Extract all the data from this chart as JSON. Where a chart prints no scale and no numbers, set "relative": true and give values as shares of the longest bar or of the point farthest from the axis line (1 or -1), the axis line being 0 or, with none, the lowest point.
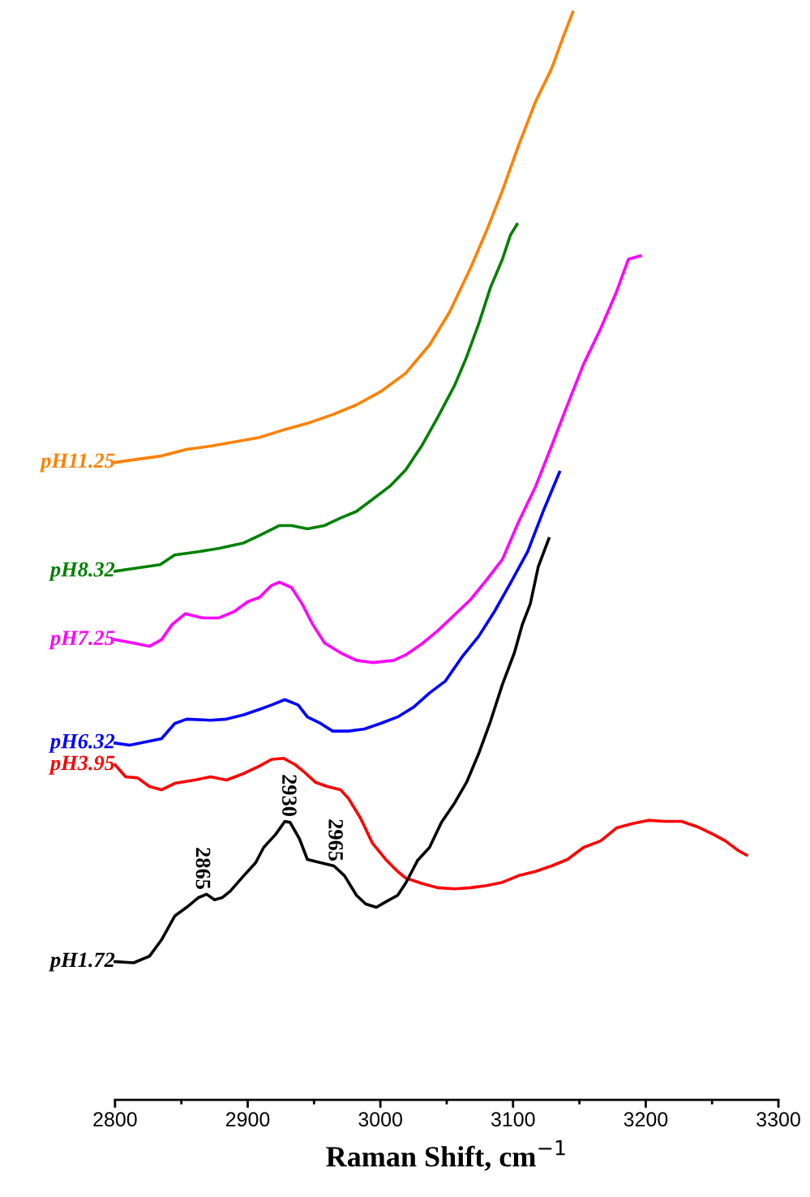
{
  "chart_data": {
    "type": "line",
    "relative": true,
    "xlabel": "Raman Shift, cm$^{−1}$",
    "xlim": [
      2800,
      3300
    ],
    "xticks": [
      2800,
      2900,
      3000,
      3100,
      3200,
      3300
    ],
    "grid": false,
    "legend": false,
    "marker": "none",
    "line_style": "solid",
    "series": [
      {
        "name": "pH11.25",
        "color": "#ff8000",
        "x": [
          2800,
          2817,
          2835,
          2854,
          2872,
          2890,
          2909,
          2927,
          2945,
          2964,
          2982,
          3000,
          3019,
          3037,
          3052,
          3068,
          3080,
          3092,
          3104,
          3117,
          3129,
          3138,
          3145
        ],
        "values": [
          0.586,
          0.589,
          0.592,
          0.598,
          0.601,
          0.605,
          0.609,
          0.616,
          0.622,
          0.63,
          0.639,
          0.651,
          0.668,
          0.694,
          0.724,
          0.765,
          0.799,
          0.836,
          0.877,
          0.918,
          0.948,
          0.978,
          1.0
        ]
      },
      {
        "name": "pH8.32",
        "color": "#008000",
        "x": [
          2800,
          2817,
          2834,
          2845,
          2863,
          2878,
          2897,
          2909,
          2924,
          2933,
          2945,
          2958,
          2970,
          2982,
          2994,
          3007,
          3019,
          3031,
          3043,
          3056,
          3065,
          3074,
          3083,
          3092,
          3098,
          3103
        ],
        "values": [
          0.486,
          0.489,
          0.492,
          0.501,
          0.504,
          0.507,
          0.512,
          0.519,
          0.528,
          0.528,
          0.525,
          0.528,
          0.535,
          0.541,
          0.552,
          0.564,
          0.579,
          0.601,
          0.627,
          0.657,
          0.683,
          0.713,
          0.747,
          0.773,
          0.795,
          0.805
        ]
      },
      {
        "name": "pH7.25",
        "color": "#ff00ff",
        "x": [
          2800,
          2814,
          2826,
          2835,
          2843,
          2853,
          2866,
          2878,
          2890,
          2900,
          2909,
          2918,
          2924,
          2933,
          2941,
          2949,
          2958,
          2970,
          2982,
          2994,
          3010,
          3019,
          3031,
          3043,
          3056,
          3068,
          3080,
          3092,
          3104,
          3117,
          3129,
          3141,
          3153,
          3166,
          3178,
          3187,
          3196
        ],
        "values": [
          0.423,
          0.42,
          0.417,
          0.423,
          0.437,
          0.447,
          0.443,
          0.443,
          0.449,
          0.458,
          0.462,
          0.473,
          0.476,
          0.471,
          0.456,
          0.437,
          0.42,
          0.411,
          0.404,
          0.402,
          0.404,
          0.409,
          0.419,
          0.431,
          0.446,
          0.46,
          0.478,
          0.497,
          0.531,
          0.564,
          0.601,
          0.639,
          0.676,
          0.709,
          0.743,
          0.773,
          0.776
        ]
      },
      {
        "name": "pH6.32",
        "color": "#0000ff",
        "x": [
          2800,
          2811,
          2823,
          2835,
          2845,
          2854,
          2872,
          2884,
          2897,
          2909,
          2918,
          2928,
          2938,
          2945,
          2955,
          2964,
          2976,
          2988,
          3000,
          3013,
          3025,
          3037,
          3049,
          3062,
          3074,
          3086,
          3098,
          3111,
          3123,
          3135
        ],
        "values": [
          0.328,
          0.326,
          0.329,
          0.332,
          0.346,
          0.35,
          0.349,
          0.35,
          0.354,
          0.359,
          0.363,
          0.368,
          0.363,
          0.352,
          0.346,
          0.339,
          0.339,
          0.341,
          0.346,
          0.352,
          0.361,
          0.374,
          0.385,
          0.408,
          0.426,
          0.449,
          0.475,
          0.504,
          0.542,
          0.577
        ]
      },
      {
        "name": "pH3.95",
        "color": "#ff0000",
        "x": [
          2800,
          2808,
          2817,
          2826,
          2835,
          2845,
          2860,
          2872,
          2884,
          2897,
          2909,
          2918,
          2927,
          2936,
          2942,
          2951,
          2960,
          2970,
          2976,
          2985,
          2994,
          3004,
          3013,
          3019,
          3031,
          3043,
          3056,
          3068,
          3080,
          3092,
          3104,
          3117,
          3129,
          3141,
          3153,
          3166,
          3178,
          3190,
          3202,
          3214,
          3227,
          3239,
          3251,
          3260,
          3270,
          3276
        ],
        "values": [
          0.308,
          0.297,
          0.296,
          0.288,
          0.285,
          0.291,
          0.294,
          0.297,
          0.294,
          0.3,
          0.307,
          0.313,
          0.314,
          0.308,
          0.302,
          0.292,
          0.288,
          0.285,
          0.277,
          0.259,
          0.236,
          0.221,
          0.21,
          0.204,
          0.199,
          0.195,
          0.194,
          0.195,
          0.197,
          0.2,
          0.206,
          0.21,
          0.215,
          0.221,
          0.232,
          0.238,
          0.25,
          0.254,
          0.257,
          0.256,
          0.256,
          0.251,
          0.244,
          0.238,
          0.229,
          0.225
        ]
      },
      {
        "name": "pH1.72",
        "color": "#000000",
        "x": [
          2800,
          2814,
          2826,
          2835,
          2845,
          2854,
          2863,
          2869,
          2875,
          2881,
          2887,
          2897,
          2906,
          2912,
          2921,
          2928,
          2932,
          2939,
          2945,
          2955,
          2965,
          2973,
          2982,
          2989,
          2997,
          3004,
          3013,
          3019,
          3028,
          3037,
          3046,
          3056,
          3065,
          3074,
          3083,
          3092,
          3101,
          3107,
          3113,
          3119,
          3127
        ],
        "values": [
          0.127,
          0.126,
          0.132,
          0.147,
          0.169,
          0.177,
          0.186,
          0.189,
          0.184,
          0.186,
          0.192,
          0.206,
          0.218,
          0.232,
          0.244,
          0.256,
          0.255,
          0.24,
          0.221,
          0.218,
          0.215,
          0.206,
          0.188,
          0.18,
          0.177,
          0.182,
          0.188,
          0.199,
          0.22,
          0.232,
          0.255,
          0.273,
          0.292,
          0.318,
          0.348,
          0.382,
          0.411,
          0.437,
          0.456,
          0.49,
          0.516
        ]
      }
    ],
    "annotations": [
      {
        "text": "2865",
        "x": 2865,
        "y": 0.189
      },
      {
        "text": "2930",
        "x": 2930,
        "y": 0.256
      },
      {
        "text": "2965",
        "x": 2965,
        "y": 0.215
      }
    ]
  }
}
